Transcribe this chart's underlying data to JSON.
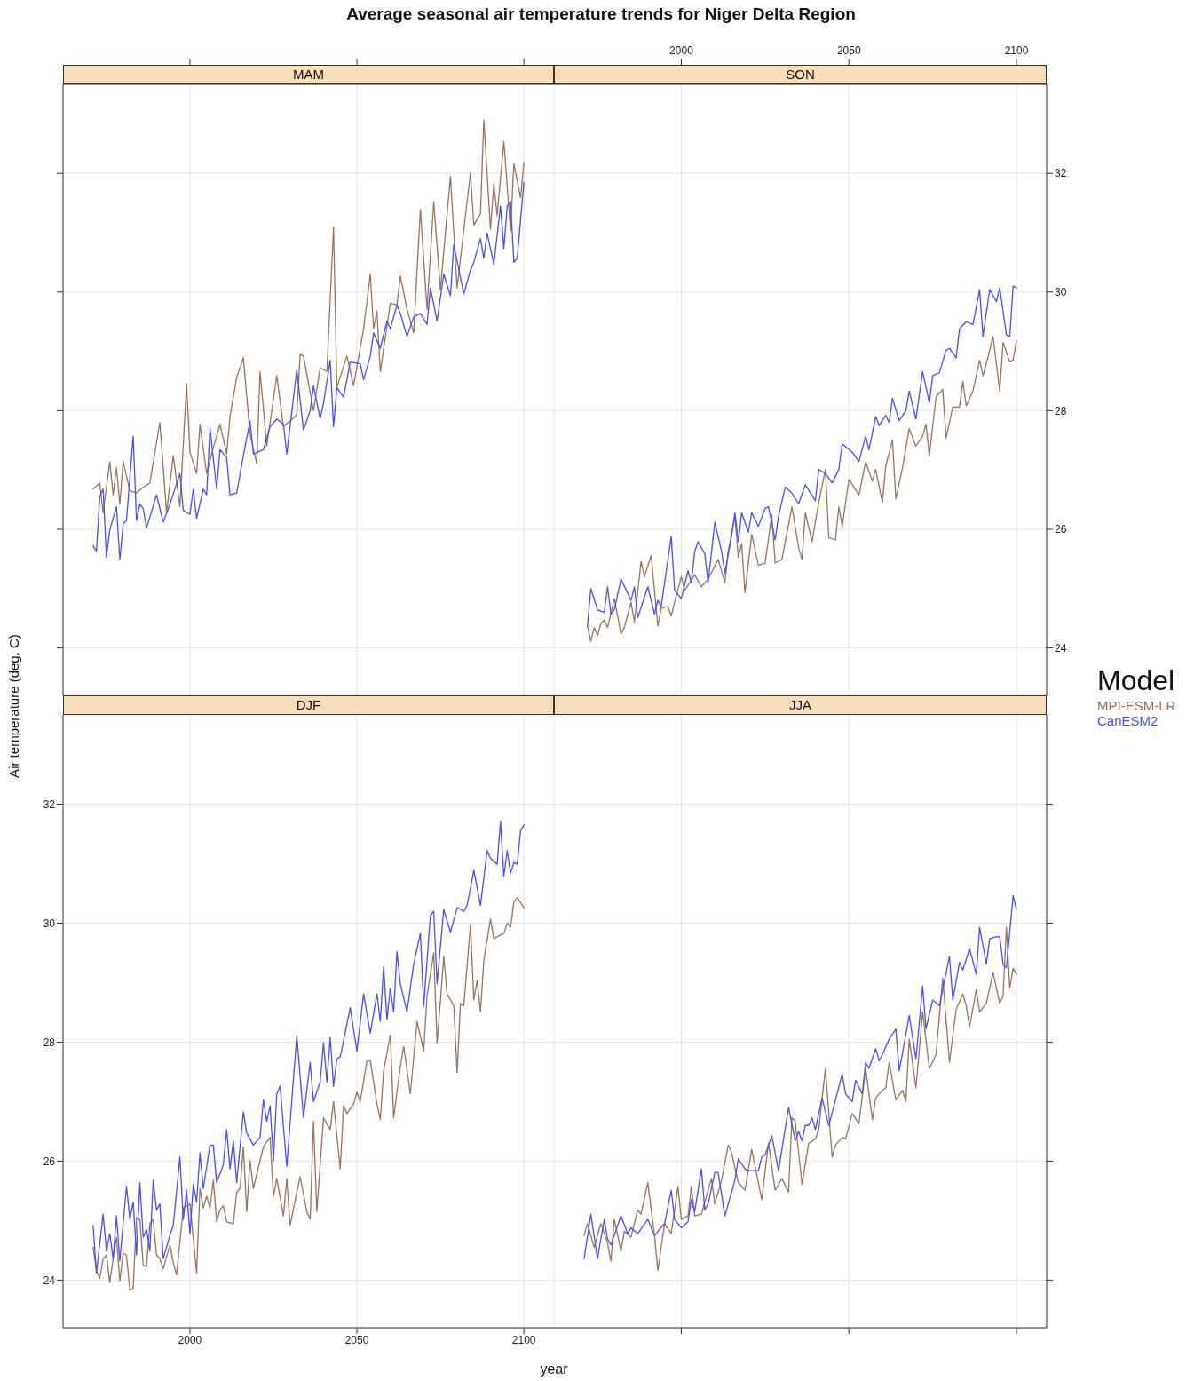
{
  "chart_data": [
    {
      "type": "line",
      "title": "MAM",
      "annotations": [
        "Average seasonal air temperature trends for Niger Delta Region"
      ],
      "xlim": [
        1962,
        2109
      ],
      "ylim": [
        23.2,
        33.5
      ],
      "xticks": [
        2000,
        2050,
        2100
      ],
      "yticks": [
        24,
        26,
        28,
        30,
        32
      ],
      "grid": true,
      "tick_labels": false,
      "series": [
        {
          "color": "#9c7257",
          "x": [
            1971,
            1973,
            1974,
            1976,
            1977,
            1978,
            1979,
            1980,
            1982,
            1984,
            1986,
            1988,
            1991,
            1993,
            1995,
            1997,
            1999,
            2000,
            2002,
            2003,
            2005,
            2007,
            2009,
            2011,
            2012,
            2014,
            2016,
            2018,
            2020,
            2021,
            2023,
            2026,
            2028,
            2032,
            2033,
            2034,
            2037,
            2039,
            2041,
            2043,
            2044,
            2047,
            2049,
            2052,
            2054,
            2055,
            2056,
            2057,
            2060,
            2062,
            2063,
            2065,
            2067,
            2069,
            2071,
            2073,
            2075,
            2078,
            2080,
            2084,
            2085,
            2087,
            2088,
            2090,
            2091,
            2092,
            2094,
            2096,
            2097,
            2099,
            2100
          ],
          "values": [
            26.68,
            26.78,
            26.28,
            27.14,
            26.58,
            27.04,
            26.42,
            27.14,
            26.65,
            26.61,
            26.71,
            26.78,
            27.8,
            26.28,
            27.24,
            26.38,
            28.46,
            27.3,
            26.94,
            27.77,
            26.94,
            27.37,
            27.77,
            27.27,
            27.9,
            28.56,
            28.89,
            27.6,
            27.11,
            28.66,
            27.4,
            28.59,
            27.73,
            27.93,
            28.95,
            28.92,
            28,
            28.72,
            28.66,
            31.09,
            28.39,
            28.92,
            28.42,
            29.38,
            30.3,
            29.38,
            29.68,
            28.66,
            29.81,
            29.78,
            30.27,
            29.71,
            29.31,
            31.39,
            29.71,
            31.52,
            30.04,
            31.95,
            30.07,
            32.01,
            31.13,
            31.32,
            32.9,
            31.06,
            31.82,
            31.29,
            32.54,
            31.03,
            32.16,
            31.59,
            32.18
          ]
        },
        {
          "color": "#4a4aff",
          "x": [
            1971,
            1972,
            1973,
            1974,
            1975,
            1976,
            1978,
            1979,
            1980,
            1981,
            1983,
            1984,
            1985,
            1986,
            1987,
            1990,
            1992,
            1994,
            1997,
            1998,
            2000,
            2001,
            2002,
            2004,
            2005,
            2006,
            2008,
            2009,
            2011,
            2012,
            2014,
            2016,
            2018,
            2019,
            2022,
            2024,
            2026,
            2028,
            2029,
            2032,
            2034,
            2036,
            2037,
            2039,
            2040,
            2042,
            2043,
            2044,
            2046,
            2048,
            2051,
            2052,
            2054,
            2055,
            2057,
            2059,
            2060,
            2062,
            2063,
            2065,
            2067,
            2069,
            2071,
            2072,
            2074,
            2076,
            2078,
            2079,
            2082,
            2084,
            2085,
            2087,
            2088,
            2089,
            2091,
            2093,
            2094,
            2095,
            2096,
            2097,
            2098,
            2100
          ],
          "values": [
            25.72,
            25.63,
            26.55,
            26.68,
            25.53,
            25.99,
            26.38,
            25.49,
            26.09,
            26.15,
            27.57,
            26.15,
            26.42,
            26.35,
            26.02,
            26.58,
            26.12,
            26.42,
            26.94,
            26.32,
            26.25,
            26.68,
            26.18,
            26.68,
            26.58,
            27.7,
            26.68,
            27.34,
            27.21,
            26.58,
            26.61,
            27.24,
            27.83,
            27.27,
            27.34,
            27.73,
            27.86,
            27.77,
            27.27,
            28.69,
            27.67,
            28,
            28.42,
            27.86,
            28.13,
            28.85,
            27.73,
            28.39,
            28.23,
            28.82,
            28.79,
            28.52,
            28.92,
            29.31,
            29.05,
            29.51,
            29.38,
            29.78,
            29.64,
            29.25,
            29.58,
            29.64,
            29.45,
            30.07,
            29.51,
            30.3,
            29.94,
            30.8,
            29.97,
            30.37,
            30.5,
            30.9,
            30.57,
            30.99,
            30.47,
            31.45,
            30.73,
            31.45,
            31.52,
            30.5,
            30.57,
            31.85
          ]
        }
      ]
    },
    {
      "type": "line",
      "title": "SON",
      "legend_title": "Model",
      "xlim": [
        1962,
        2109
      ],
      "ylim": [
        23.2,
        33.5
      ],
      "xticks": [
        2000,
        2050,
        2100
      ],
      "yticks": [
        24,
        26,
        28,
        30,
        32
      ],
      "grid": true,
      "series": [
        {
          "name": "MPI-ESM-LR",
          "color": "#9c7257",
          "x": [
            1972,
            1973,
            1974,
            1975,
            1976,
            1977,
            1978,
            1980,
            1982,
            1983,
            1985,
            1986,
            1988,
            1989,
            1991,
            1993,
            1994,
            1996,
            1997,
            1998,
            2000,
            2001,
            2004,
            2006,
            2008,
            2011,
            2013,
            2014,
            2016,
            2017,
            2018,
            2019,
            2021,
            2023,
            2025,
            2027,
            2028,
            2030,
            2033,
            2035,
            2036,
            2037,
            2039,
            2041,
            2043,
            2044,
            2046,
            2047,
            2048,
            2050,
            2053,
            2055,
            2057,
            2058,
            2060,
            2061,
            2063,
            2064,
            2066,
            2068,
            2070,
            2072,
            2073,
            2074,
            2076,
            2078,
            2079,
            2081,
            2083,
            2084,
            2085,
            2087,
            2089,
            2090,
            2091,
            2093,
            2095,
            2096,
            2098,
            2099,
            2100
          ],
          "values": [
            24.37,
            24.11,
            24.34,
            24.21,
            24.41,
            24.47,
            24.34,
            24.83,
            24.24,
            24.34,
            24.77,
            24.44,
            25.46,
            25.2,
            25.56,
            24.37,
            24.67,
            24.7,
            24.54,
            24.77,
            25.2,
            24.97,
            25.23,
            25.03,
            25.16,
            25.49,
            25.1,
            25.63,
            26.22,
            25.53,
            25.76,
            24.93,
            25.92,
            25.39,
            25.43,
            26.25,
            25.43,
            25.49,
            26.38,
            25.69,
            25.49,
            26.28,
            25.79,
            26.45,
            27.01,
            25.86,
            25.82,
            26.38,
            26.05,
            26.84,
            26.58,
            27.14,
            26.81,
            27.01,
            26.45,
            27.07,
            27.5,
            26.51,
            27.04,
            27.7,
            27.4,
            27.57,
            27.77,
            27.24,
            28.23,
            28.36,
            27.54,
            28.06,
            28.06,
            28.49,
            28.08,
            28.33,
            28.85,
            28.59,
            28.79,
            29.25,
            28.33,
            29.15,
            28.82,
            28.85,
            29.18
          ]
        },
        {
          "name": "CanESM2",
          "color": "#4a4aff",
          "x": [
            1972,
            1973,
            1975,
            1977,
            1978,
            1979,
            1980,
            1982,
            1985,
            1986,
            1987,
            1990,
            1992,
            1993,
            1994,
            1997,
            1998,
            2000,
            2002,
            2003,
            2004,
            2005,
            2007,
            2008,
            2010,
            2012,
            2013,
            2015,
            2016,
            2017,
            2018,
            2020,
            2021,
            2023,
            2025,
            2026,
            2028,
            2029,
            2031,
            2033,
            2035,
            2037,
            2040,
            2041,
            2043,
            2045,
            2047,
            2048,
            2051,
            2053,
            2055,
            2056,
            2058,
            2059,
            2061,
            2062,
            2063,
            2065,
            2067,
            2068,
            2070,
            2072,
            2074,
            2075,
            2077,
            2079,
            2080,
            2082,
            2083,
            2085,
            2087,
            2089,
            2090,
            2092,
            2094,
            2095,
            2097,
            2098,
            2099,
            2100
          ],
          "values": [
            24.37,
            25,
            24.64,
            24.6,
            25.03,
            24.57,
            24.64,
            25.16,
            24.8,
            25.03,
            24.51,
            25.03,
            24.57,
            24.8,
            24.7,
            25.88,
            24.97,
            24.83,
            25.3,
            25.1,
            25.63,
            25.79,
            25.59,
            25.1,
            26.12,
            25.63,
            25.26,
            25.89,
            26.28,
            25.79,
            26.28,
            25.95,
            26.28,
            26.05,
            26.35,
            26.38,
            25.82,
            26.22,
            26.71,
            26.61,
            26.43,
            26.75,
            26.48,
            27.01,
            26.94,
            26.78,
            27.01,
            27.44,
            27.3,
            27.14,
            27.57,
            27.34,
            27.9,
            27.75,
            27.92,
            27.8,
            28.21,
            27.83,
            28,
            28.33,
            27.86,
            28.66,
            28.13,
            28.59,
            28.64,
            29.02,
            29.05,
            28.89,
            29.38,
            29.5,
            29.45,
            30.04,
            29.25,
            30.04,
            29.84,
            30.07,
            29.28,
            29.25,
            30.1,
            30.07
          ]
        }
      ]
    },
    {
      "type": "line",
      "title": "DJF",
      "xlabel": "year",
      "ylabel": "Air temperature (deg. C)",
      "xlim": [
        1962,
        2109
      ],
      "ylim": [
        23.2,
        33.5
      ],
      "xticks": [
        2000,
        2050,
        2100
      ],
      "yticks": [
        24,
        26,
        28,
        30,
        32
      ],
      "grid": true,
      "series": [
        {
          "color": "#9c7257",
          "x": [
            1971,
            1972,
            1973,
            1974,
            1975,
            1976,
            1977,
            1978,
            1979,
            1980,
            1981,
            1982,
            1983,
            1984,
            1985,
            1986,
            1987,
            1988,
            1989,
            1990,
            1991,
            1992,
            1994,
            1995,
            1996,
            1998,
            2000,
            2002,
            2003,
            2004,
            2005,
            2006,
            2007,
            2008,
            2009,
            2010,
            2011,
            2013,
            2014,
            2015,
            2016,
            2017,
            2018,
            2019,
            2021,
            2022,
            2024,
            2025,
            2026,
            2028,
            2029,
            2030,
            2032,
            2033,
            2035,
            2036,
            2037,
            2038,
            2040,
            2042,
            2043,
            2045,
            2046,
            2047,
            2049,
            2050,
            2051,
            2053,
            2054,
            2056,
            2057,
            2058,
            2060,
            2061,
            2063,
            2064,
            2066,
            2068,
            2070,
            2071,
            2073,
            2074,
            2075,
            2076,
            2077,
            2079,
            2080,
            2081,
            2082,
            2084,
            2085,
            2086,
            2087,
            2088,
            2090,
            2091,
            2094,
            2095,
            2096,
            2097,
            2098,
            2100
          ],
          "values": [
            24.55,
            24.16,
            24.03,
            24.36,
            24.42,
            23.96,
            24.36,
            24.72,
            23.99,
            24.45,
            24.42,
            23.83,
            23.86,
            25.05,
            25.02,
            24.26,
            24.22,
            24.95,
            25.02,
            24.42,
            24.36,
            24.19,
            24.59,
            24.29,
            24.09,
            25.21,
            25.28,
            24.12,
            25.54,
            25.21,
            25.41,
            25.21,
            25.68,
            24.98,
            25.18,
            25.25,
            24.98,
            24.95,
            25.48,
            25.54,
            26.24,
            25.15,
            26.01,
            25.54,
            26.01,
            26.24,
            26.4,
            25.41,
            25.71,
            25.08,
            25.71,
            24.92,
            25.48,
            25.74,
            25.15,
            25.02,
            26.67,
            25.15,
            26.73,
            26.53,
            27,
            25.87,
            26.93,
            26.8,
            26.96,
            27.16,
            27,
            27.69,
            27.69,
            26.96,
            26.7,
            27.52,
            28.12,
            26.73,
            27.59,
            27.93,
            27.13,
            28.35,
            27.85,
            28.78,
            29.5,
            27.99,
            28.68,
            29.44,
            28.81,
            28.61,
            27.49,
            28.65,
            28.61,
            29.97,
            28.71,
            29.04,
            28.51,
            29.37,
            30.07,
            29.74,
            29.83,
            30,
            29.93,
            30.36,
            30.43,
            30.26
          ]
        },
        {
          "color": "#4a4aff",
          "x": [
            1971,
            1972,
            1974,
            1975,
            1976,
            1977,
            1978,
            1979,
            1981,
            1982,
            1983,
            1984,
            1985,
            1986,
            1987,
            1988,
            1989,
            1990,
            1991,
            1992,
            1994,
            1995,
            1997,
            1998,
            1999,
            2000,
            2001,
            2002,
            2003,
            2004,
            2006,
            2007,
            2008,
            2010,
            2011,
            2012,
            2013,
            2014,
            2016,
            2017,
            2019,
            2021,
            2022,
            2023,
            2024,
            2025,
            2026,
            2027,
            2029,
            2032,
            2034,
            2036,
            2037,
            2039,
            2040,
            2041,
            2042,
            2043,
            2044,
            2045,
            2048,
            2050,
            2052,
            2054,
            2056,
            2057,
            2058,
            2059,
            2060,
            2061,
            2062,
            2063,
            2065,
            2067,
            2069,
            2070,
            2072,
            2073,
            2074,
            2076,
            2078,
            2080,
            2082,
            2083,
            2085,
            2087,
            2089,
            2090,
            2092,
            2093,
            2094,
            2095,
            2096,
            2097,
            2098,
            2099,
            2100
          ],
          "values": [
            24.92,
            24.12,
            25.11,
            24.49,
            24.78,
            24.36,
            25.08,
            24.32,
            25.58,
            25.02,
            25.31,
            24.42,
            25.64,
            24.72,
            24.85,
            24.49,
            25.68,
            25.18,
            25.28,
            24.36,
            24.75,
            24.92,
            26.07,
            25.02,
            25.51,
            24.78,
            25.61,
            25.31,
            26.14,
            25.54,
            26.27,
            26.27,
            25.64,
            25.94,
            26.53,
            25.87,
            26.34,
            25.64,
            26.83,
            26.47,
            26.27,
            26.4,
            27.03,
            26.67,
            26.93,
            26.01,
            27.13,
            27.26,
            25.91,
            28.12,
            26.73,
            27.66,
            27,
            27.33,
            27.99,
            27.33,
            28.08,
            27.26,
            27.72,
            27.75,
            28.58,
            27.85,
            28.81,
            28.15,
            28.81,
            28.35,
            29.27,
            28.38,
            28.91,
            28.51,
            29.52,
            28.98,
            28.51,
            29.31,
            29.83,
            28.61,
            30.13,
            30.2,
            28.98,
            30.23,
            29.85,
            30.26,
            30.2,
            30.3,
            30.89,
            30.3,
            31.22,
            31.09,
            30.99,
            31.71,
            30.79,
            31.22,
            30.84,
            31.02,
            30.99,
            31.55,
            31.65
          ]
        }
      ]
    },
    {
      "type": "line",
      "title": "JJA",
      "xlim": [
        1962,
        2109
      ],
      "ylim": [
        23.2,
        33.5
      ],
      "xticks": [
        2000,
        2050,
        2100
      ],
      "yticks": [
        24,
        26,
        28,
        30,
        32
      ],
      "grid": true,
      "tick_labels": false,
      "series": [
        {
          "color": "#9c7257",
          "x": [
            1971,
            1972,
            1974,
            1976,
            1978,
            1979,
            1980,
            1982,
            1983,
            1985,
            1987,
            1988,
            1990,
            1992,
            1993,
            1995,
            1997,
            1999,
            2000,
            2002,
            2003,
            2004,
            2006,
            2009,
            2010,
            2012,
            2014,
            2015,
            2017,
            2019,
            2021,
            2024,
            2026,
            2028,
            2030,
            2032,
            2033,
            2034,
            2036,
            2038,
            2040,
            2041,
            2043,
            2045,
            2046,
            2048,
            2049,
            2051,
            2053,
            2055,
            2057,
            2058,
            2060,
            2061,
            2062,
            2064,
            2066,
            2067,
            2068,
            2070,
            2072,
            2074,
            2076,
            2078,
            2080,
            2082,
            2084,
            2085,
            2086,
            2088,
            2089,
            2091,
            2093,
            2095,
            2096,
            2097,
            2098,
            2099,
            2100
          ],
          "values": [
            24.75,
            24.95,
            24.55,
            24.95,
            24.62,
            24.32,
            25.02,
            24.49,
            24.82,
            24.72,
            25.18,
            25.11,
            25.64,
            24.75,
            24.16,
            24.95,
            24.78,
            25.58,
            25.02,
            25.08,
            25.58,
            25.08,
            25.11,
            25.71,
            25.28,
            25.68,
            26.27,
            26.14,
            25.64,
            25.51,
            26.2,
            25.35,
            26.3,
            25.51,
            25.71,
            25.48,
            26.73,
            26.67,
            25.61,
            26.3,
            26.37,
            26.53,
            27.56,
            26.07,
            26.27,
            26.4,
            26.37,
            26.8,
            26.63,
            27.56,
            26.7,
            27.06,
            27.19,
            27.23,
            27.66,
            27.03,
            27.19,
            27,
            28.05,
            27.23,
            28.51,
            27.56,
            27.79,
            29.08,
            27.66,
            28.55,
            28.81,
            28.61,
            28.25,
            28.88,
            28.51,
            28.65,
            29.17,
            28.65,
            28.78,
            29.93,
            28.91,
            29.24,
            29.14
          ]
        },
        {
          "color": "#4a4aff",
          "x": [
            1971,
            1973,
            1975,
            1977,
            1978,
            1979,
            1982,
            1984,
            1985,
            1987,
            1990,
            1992,
            1995,
            1997,
            1998,
            2000,
            2002,
            2003,
            2004,
            2006,
            2007,
            2008,
            2010,
            2011,
            2013,
            2016,
            2017,
            2019,
            2020,
            2023,
            2024,
            2025,
            2027,
            2029,
            2032,
            2034,
            2035,
            2036,
            2037,
            2038,
            2039,
            2040,
            2042,
            2044,
            2048,
            2049,
            2051,
            2052,
            2054,
            2055,
            2056,
            2058,
            2059,
            2060,
            2062,
            2064,
            2065,
            2066,
            2068,
            2070,
            2072,
            2073,
            2075,
            2077,
            2080,
            2081,
            2083,
            2084,
            2086,
            2088,
            2089,
            2091,
            2092,
            2094,
            2095,
            2096,
            2097,
            2099,
            2100
          ],
          "values": [
            24.36,
            25.11,
            24.36,
            25.02,
            24.69,
            24.59,
            25.08,
            24.78,
            24.88,
            24.78,
            25.02,
            24.75,
            24.95,
            25.51,
            25.02,
            24.88,
            24.98,
            25.35,
            25.15,
            25.87,
            25.18,
            25.28,
            25.81,
            25.81,
            25.08,
            25.68,
            26.04,
            25.87,
            25.84,
            25.84,
            26.07,
            26.1,
            26.43,
            25.84,
            26.9,
            26.34,
            26.5,
            26.34,
            26.6,
            26.6,
            26.73,
            26.53,
            27.06,
            26.6,
            27.46,
            27.13,
            27,
            27.36,
            27.13,
            27.66,
            27.56,
            27.89,
            27.69,
            27.79,
            28.05,
            28.22,
            27.52,
            27.82,
            28.45,
            27.72,
            28.94,
            28.22,
            28.71,
            28.61,
            29.44,
            28.71,
            29.34,
            29.21,
            29.57,
            29.14,
            29.93,
            29.31,
            29.74,
            29.77,
            29.77,
            29.31,
            29.25,
            30.46,
            30.23
          ]
        }
      ]
    }
  ]
}
